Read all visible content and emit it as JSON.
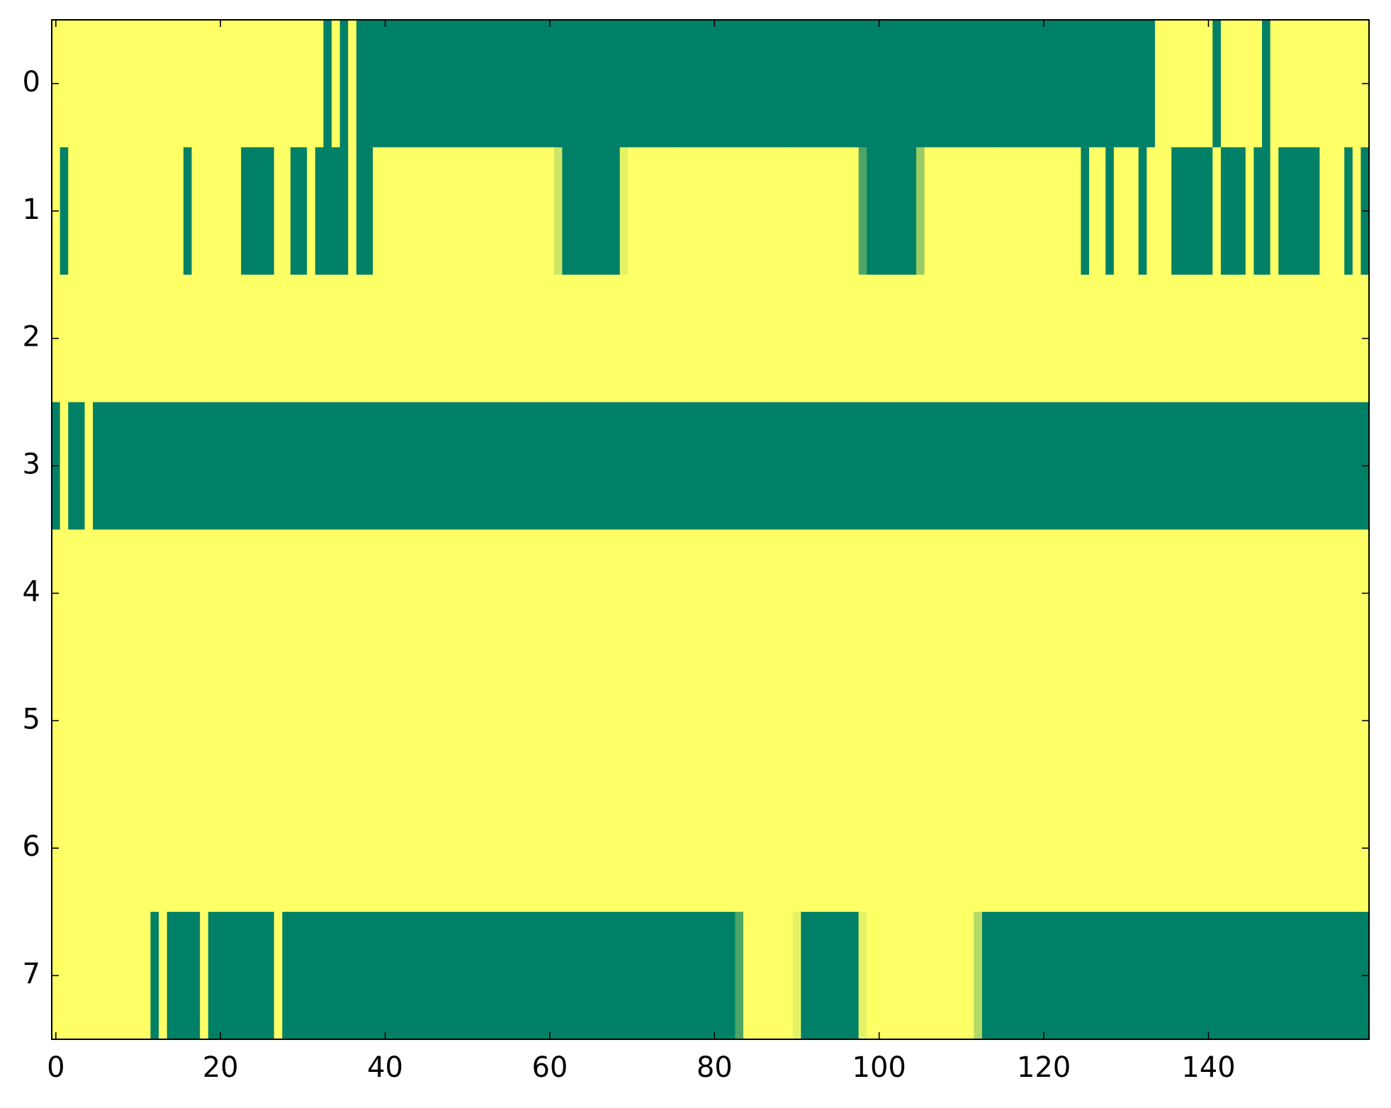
{
  "chart_data": {
    "type": "heatmap",
    "colormap": "summer",
    "xlim": [
      -0.5,
      159.5
    ],
    "ylim": [
      7.5,
      -0.5
    ],
    "xticks": [
      0,
      20,
      40,
      60,
      80,
      100,
      120,
      140
    ],
    "yticks": [
      0,
      1,
      2,
      3,
      4,
      5,
      6,
      7
    ],
    "z": [
      [
        1,
        1,
        1,
        1,
        1,
        1,
        1,
        1,
        1,
        1,
        1,
        1,
        1,
        1,
        1,
        1,
        1,
        1,
        1,
        1,
        1,
        1,
        1,
        1,
        1,
        1,
        1,
        1,
        1,
        1,
        1,
        1,
        1,
        0,
        1,
        0,
        1,
        0,
        0,
        0,
        0,
        0,
        0,
        0,
        0,
        0,
        0,
        0,
        0,
        0,
        0,
        0,
        0,
        0,
        0,
        0,
        0,
        0,
        0,
        0,
        0,
        0,
        0,
        0,
        0,
        0,
        0,
        0,
        0,
        0,
        0,
        0,
        0,
        0,
        0,
        0,
        0,
        0,
        0,
        0,
        0,
        0,
        0,
        0,
        0,
        0,
        0,
        0,
        0,
        0,
        0,
        0,
        0,
        0,
        0,
        0,
        0,
        0,
        0,
        0,
        0,
        0,
        0,
        0,
        0,
        0,
        0,
        0,
        0,
        0,
        0,
        0,
        0,
        0,
        0,
        0,
        0,
        0,
        0,
        0,
        0,
        0,
        0,
        0,
        0,
        0,
        0,
        0,
        0,
        0,
        0,
        0,
        0,
        0,
        1,
        1,
        1,
        1,
        1,
        1,
        1,
        0,
        1,
        1,
        1,
        1,
        1,
        0,
        1,
        1,
        1,
        1,
        1,
        1,
        1,
        1,
        1,
        1,
        1,
        1
      ],
      [
        1,
        0,
        1,
        1,
        1,
        1,
        1,
        1,
        1,
        1,
        1,
        1,
        1,
        1,
        1,
        1,
        0,
        1,
        1,
        1,
        1,
        1,
        1,
        0,
        0,
        0,
        0,
        1,
        1,
        0,
        0,
        1,
        0,
        0,
        0,
        0,
        1,
        0,
        0,
        1,
        1,
        1,
        1,
        1,
        1,
        1,
        1,
        1,
        1,
        1,
        1,
        1,
        1,
        1,
        1,
        1,
        1,
        1,
        1,
        1,
        1,
        0.8,
        0,
        0,
        0,
        0,
        0,
        0,
        0,
        0.9,
        1,
        1,
        1,
        1,
        1,
        1,
        1,
        1,
        1,
        1,
        1,
        1,
        1,
        1,
        1,
        1,
        1,
        1,
        1,
        1,
        1,
        1,
        1,
        1,
        1,
        1,
        1,
        1,
        0.3,
        0,
        0,
        0,
        0,
        0,
        0,
        0.6,
        1,
        1,
        1,
        1,
        1,
        1,
        1,
        1,
        1,
        1,
        1,
        1,
        1,
        1,
        1,
        1,
        1,
        1,
        1,
        0,
        1,
        1,
        0,
        1,
        1,
        1,
        0,
        1,
        1,
        1,
        0,
        0,
        0,
        0,
        0,
        1,
        0,
        0,
        0,
        1,
        0,
        0,
        1,
        0,
        0,
        0,
        0,
        0,
        1,
        1,
        1,
        0,
        1,
        0
      ],
      [
        1,
        1,
        1,
        1,
        1,
        1,
        1,
        1,
        1,
        1,
        1,
        1,
        1,
        1,
        1,
        1,
        1,
        1,
        1,
        1,
        1,
        1,
        1,
        1,
        1,
        1,
        1,
        1,
        1,
        1,
        1,
        1,
        1,
        1,
        1,
        1,
        1,
        1,
        1,
        1,
        1,
        1,
        1,
        1,
        1,
        1,
        1,
        1,
        1,
        1,
        1,
        1,
        1,
        1,
        1,
        1,
        1,
        1,
        1,
        1,
        1,
        1,
        1,
        1,
        1,
        1,
        1,
        1,
        1,
        1,
        1,
        1,
        1,
        1,
        1,
        1,
        1,
        1,
        1,
        1,
        1,
        1,
        1,
        1,
        1,
        1,
        1,
        1,
        1,
        1,
        1,
        1,
        1,
        1,
        1,
        1,
        1,
        1,
        1,
        1,
        1,
        1,
        1,
        1,
        1,
        1,
        1,
        1,
        1,
        1,
        1,
        1,
        1,
        1,
        1,
        1,
        1,
        1,
        1,
        1,
        1,
        1,
        1,
        1,
        1,
        1,
        1,
        1,
        1,
        1,
        1,
        1,
        1,
        1,
        1,
        1,
        1,
        1,
        1,
        1,
        1,
        1,
        1,
        1,
        1,
        1,
        1,
        1,
        1,
        1,
        1,
        1,
        1,
        1,
        1,
        1,
        1,
        1,
        1,
        1
      ],
      [
        0,
        1,
        0,
        0,
        1,
        0,
        0,
        0,
        0,
        0,
        0,
        0,
        0,
        0,
        0,
        0,
        0,
        0,
        0,
        0,
        0,
        0,
        0,
        0,
        0,
        0,
        0,
        0,
        0,
        0,
        0,
        0,
        0,
        0,
        0,
        0,
        0,
        0,
        0,
        0,
        0,
        0,
        0,
        0,
        0,
        0,
        0,
        0,
        0,
        0,
        0,
        0,
        0,
        0,
        0,
        0,
        0,
        0,
        0,
        0,
        0,
        0,
        0,
        0,
        0,
        0,
        0,
        0,
        0,
        0,
        0,
        0,
        0,
        0,
        0,
        0,
        0,
        0,
        0,
        0,
        0,
        0,
        0,
        0,
        0,
        0,
        0,
        0,
        0,
        0,
        0,
        0,
        0,
        0,
        0,
        0,
        0,
        0,
        0,
        0,
        0,
        0,
        0,
        0,
        0,
        0,
        0,
        0,
        0,
        0,
        0,
        0,
        0,
        0,
        0,
        0,
        0,
        0,
        0,
        0,
        0,
        0,
        0,
        0,
        0,
        0,
        0,
        0,
        0,
        0,
        0,
        0,
        0,
        0,
        0,
        0,
        0,
        0,
        0,
        0,
        0,
        0,
        0,
        0,
        0,
        0,
        0,
        0,
        0,
        0,
        0,
        0,
        0,
        0,
        0,
        0,
        0,
        0,
        0,
        0
      ],
      [
        1,
        1,
        1,
        1,
        1,
        1,
        1,
        1,
        1,
        1,
        1,
        1,
        1,
        1,
        1,
        1,
        1,
        1,
        1,
        1,
        1,
        1,
        1,
        1,
        1,
        1,
        1,
        1,
        1,
        1,
        1,
        1,
        1,
        1,
        1,
        1,
        1,
        1,
        1,
        1,
        1,
        1,
        1,
        1,
        1,
        1,
        1,
        1,
        1,
        1,
        1,
        1,
        1,
        1,
        1,
        1,
        1,
        1,
        1,
        1,
        1,
        1,
        1,
        1,
        1,
        1,
        1,
        1,
        1,
        1,
        1,
        1,
        1,
        1,
        1,
        1,
        1,
        1,
        1,
        1,
        1,
        1,
        1,
        1,
        1,
        1,
        1,
        1,
        1,
        1,
        1,
        1,
        1,
        1,
        1,
        1,
        1,
        1,
        1,
        1,
        1,
        1,
        1,
        1,
        1,
        1,
        1,
        1,
        1,
        1,
        1,
        1,
        1,
        1,
        1,
        1,
        1,
        1,
        1,
        1,
        1,
        1,
        1,
        1,
        1,
        1,
        1,
        1,
        1,
        1,
        1,
        1,
        1,
        1,
        1,
        1,
        1,
        1,
        1,
        1,
        1,
        1,
        1,
        1,
        1,
        1,
        1,
        1,
        1,
        1,
        1,
        1,
        1,
        1,
        1,
        1,
        1,
        1,
        1,
        1
      ],
      [
        1,
        1,
        1,
        1,
        1,
        1,
        1,
        1,
        1,
        1,
        1,
        1,
        1,
        1,
        1,
        1,
        1,
        1,
        1,
        1,
        1,
        1,
        1,
        1,
        1,
        1,
        1,
        1,
        1,
        1,
        1,
        1,
        1,
        1,
        1,
        1,
        1,
        1,
        1,
        1,
        1,
        1,
        1,
        1,
        1,
        1,
        1,
        1,
        1,
        1,
        1,
        1,
        1,
        1,
        1,
        1,
        1,
        1,
        1,
        1,
        1,
        1,
        1,
        1,
        1,
        1,
        1,
        1,
        1,
        1,
        1,
        1,
        1,
        1,
        1,
        1,
        1,
        1,
        1,
        1,
        1,
        1,
        1,
        1,
        1,
        1,
        1,
        1,
        1,
        1,
        1,
        1,
        1,
        1,
        1,
        1,
        1,
        1,
        1,
        1,
        1,
        1,
        1,
        1,
        1,
        1,
        1,
        1,
        1,
        1,
        1,
        1,
        1,
        1,
        1,
        1,
        1,
        1,
        1,
        1,
        1,
        1,
        1,
        1,
        1,
        1,
        1,
        1,
        1,
        1,
        1,
        1,
        1,
        1,
        1,
        1,
        1,
        1,
        1,
        1,
        1,
        1,
        1,
        1,
        1,
        1,
        1,
        1,
        1,
        1,
        1,
        1,
        1,
        1,
        1,
        1,
        1,
        1,
        1,
        1
      ],
      [
        1,
        1,
        1,
        1,
        1,
        1,
        1,
        1,
        1,
        1,
        1,
        1,
        1,
        1,
        1,
        1,
        1,
        1,
        1,
        1,
        1,
        1,
        1,
        1,
        1,
        1,
        1,
        1,
        1,
        1,
        1,
        1,
        1,
        1,
        1,
        1,
        1,
        1,
        1,
        1,
        1,
        1,
        1,
        1,
        1,
        1,
        1,
        1,
        1,
        1,
        1,
        1,
        1,
        1,
        1,
        1,
        1,
        1,
        1,
        1,
        1,
        1,
        1,
        1,
        1,
        1,
        1,
        1,
        1,
        1,
        1,
        1,
        1,
        1,
        1,
        1,
        1,
        1,
        1,
        1,
        1,
        1,
        1,
        1,
        1,
        1,
        1,
        1,
        1,
        1,
        1,
        1,
        1,
        1,
        1,
        1,
        1,
        1,
        1,
        1,
        1,
        1,
        1,
        1,
        1,
        1,
        1,
        1,
        1,
        1,
        1,
        1,
        1,
        1,
        1,
        1,
        1,
        1,
        1,
        1,
        1,
        1,
        1,
        1,
        1,
        1,
        1,
        1,
        1,
        1,
        1,
        1,
        1,
        1,
        1,
        1,
        1,
        1,
        1,
        1,
        1,
        1,
        1,
        1,
        1,
        1,
        1,
        1,
        1,
        1,
        1,
        1,
        1,
        1,
        1,
        1,
        1,
        1,
        1,
        1
      ],
      [
        1,
        1,
        1,
        1,
        1,
        1,
        1,
        1,
        1,
        1,
        1,
        1,
        0,
        1,
        0,
        0,
        0,
        0,
        1,
        0,
        0,
        0,
        0,
        0,
        0,
        0,
        0,
        1,
        0,
        0,
        0,
        0,
        0,
        0,
        0,
        0,
        0,
        0,
        0,
        0,
        0,
        0,
        0,
        0,
        0,
        0,
        0,
        0,
        0,
        0,
        0,
        0,
        0,
        0,
        0,
        0,
        0,
        0,
        0,
        0,
        0,
        0,
        0,
        0,
        0,
        0,
        0,
        0,
        0,
        0,
        0,
        0,
        0,
        0,
        0,
        0,
        0,
        0,
        0,
        0,
        0,
        0,
        0,
        0.3,
        1,
        1,
        1,
        1,
        1,
        1,
        0.9,
        0,
        0,
        0,
        0,
        0,
        0,
        0,
        0.9,
        1,
        1,
        1,
        1,
        1,
        1,
        1,
        1,
        1,
        1,
        1,
        1,
        1,
        0.7,
        0,
        0,
        0,
        0,
        0,
        0,
        0,
        0,
        0,
        0,
        0,
        0,
        0,
        0,
        0,
        0,
        0,
        0,
        0,
        0,
        0,
        0,
        0,
        0,
        0,
        0,
        0,
        0,
        0,
        0,
        0,
        0,
        0,
        0,
        0,
        0,
        0,
        0,
        0,
        0,
        0,
        0,
        0,
        0,
        0,
        0,
        0
      ]
    ]
  }
}
